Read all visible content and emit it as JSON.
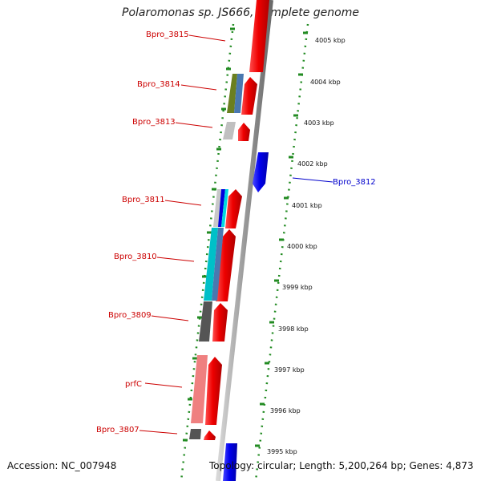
{
  "title": "Polaromonas sp. JS666, complete genome",
  "footer": {
    "accession": "Accession: NC_007948",
    "topology": "Topology: circular; Length: 5,200,264 bp; Genes: 4,873"
  },
  "scale_labels": [
    "4005 kbp",
    "4004 kbp",
    "4003 kbp",
    "4002 kbp",
    "4001 kbp",
    "4000 kbp",
    "3999 kbp",
    "3998 kbp",
    "3997 kbp",
    "3996 kbp",
    "3995 kbp"
  ],
  "gene_labels": [
    {
      "id": "Bpro_3815",
      "text": "Bpro_3815",
      "color": "#cc0000"
    },
    {
      "id": "Bpro_3814",
      "text": "Bpro_3814",
      "color": "#cc0000"
    },
    {
      "id": "Bpro_3813",
      "text": "Bpro_3813",
      "color": "#cc0000"
    },
    {
      "id": "Bpro_3812",
      "text": "Bpro_3812",
      "color": "#0000cc"
    },
    {
      "id": "Bpro_3811",
      "text": "Bpro_3811",
      "color": "#cc0000"
    },
    {
      "id": "Bpro_3810",
      "text": "Bpro_3810",
      "color": "#cc0000"
    },
    {
      "id": "Bpro_3809",
      "text": "Bpro_3809",
      "color": "#cc0000"
    },
    {
      "id": "prfC",
      "text": "prfC",
      "color": "#cc0000"
    },
    {
      "id": "Bpro_3807",
      "text": "Bpro_3807",
      "color": "#cc0000"
    }
  ],
  "colors": {
    "forward_cds": "#ee0000",
    "reverse_cds": "#0000ee",
    "backbone": "#9a9a9a",
    "ticks": "#228b22"
  }
}
